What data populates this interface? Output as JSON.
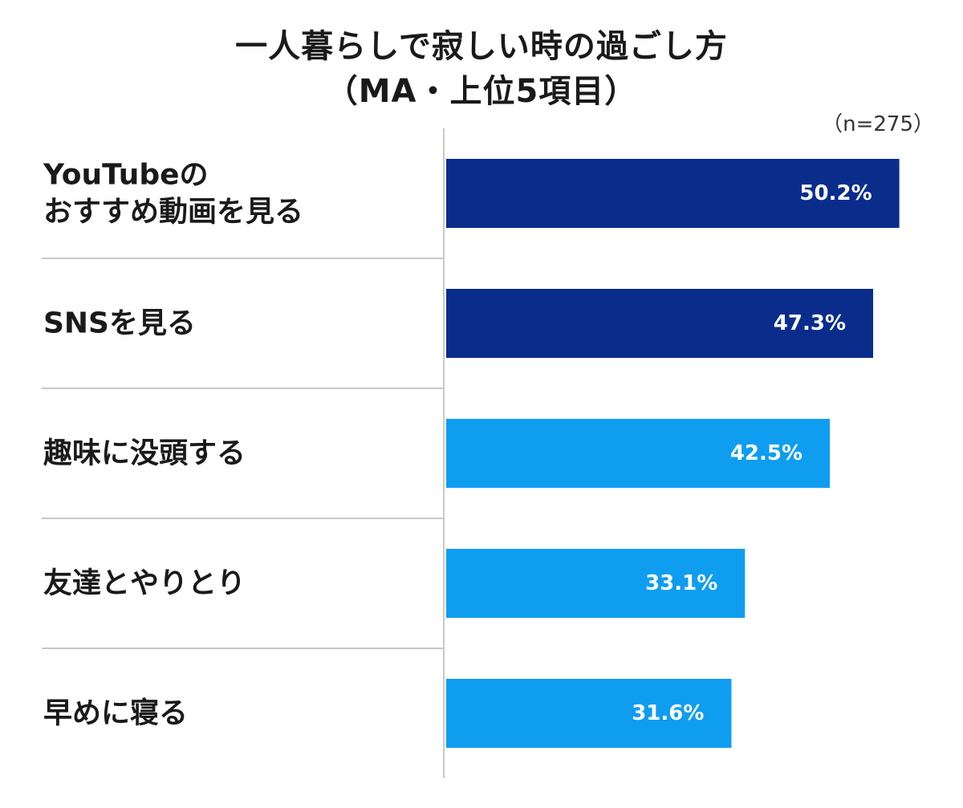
{
  "chart_data": {
    "type": "bar",
    "orientation": "horizontal",
    "title_lines": [
      "一人暮らしで寂しい時の過ごし方",
      "（MA・上位5項目）"
    ],
    "sample_size": "（n=275）",
    "categories": [
      [
        "YouTubeの",
        "おすすめ動画を見る"
      ],
      [
        "SNSを見る"
      ],
      [
        "趣味に没頭する"
      ],
      [
        "友達とやりとり"
      ],
      [
        "早めに寝る"
      ]
    ],
    "values": [
      50.2,
      47.3,
      42.5,
      33.1,
      31.6
    ],
    "value_labels": [
      "50.2%",
      "47.3%",
      "42.5%",
      "33.1%",
      "31.6%"
    ],
    "colors": [
      "#0a2d8c",
      "#0a2d8c",
      "#0f9df0",
      "#0f9df0",
      "#0f9df0"
    ],
    "value_unit": "%",
    "xlim": [
      0,
      53.7
    ],
    "grid": false,
    "legend": "none"
  }
}
